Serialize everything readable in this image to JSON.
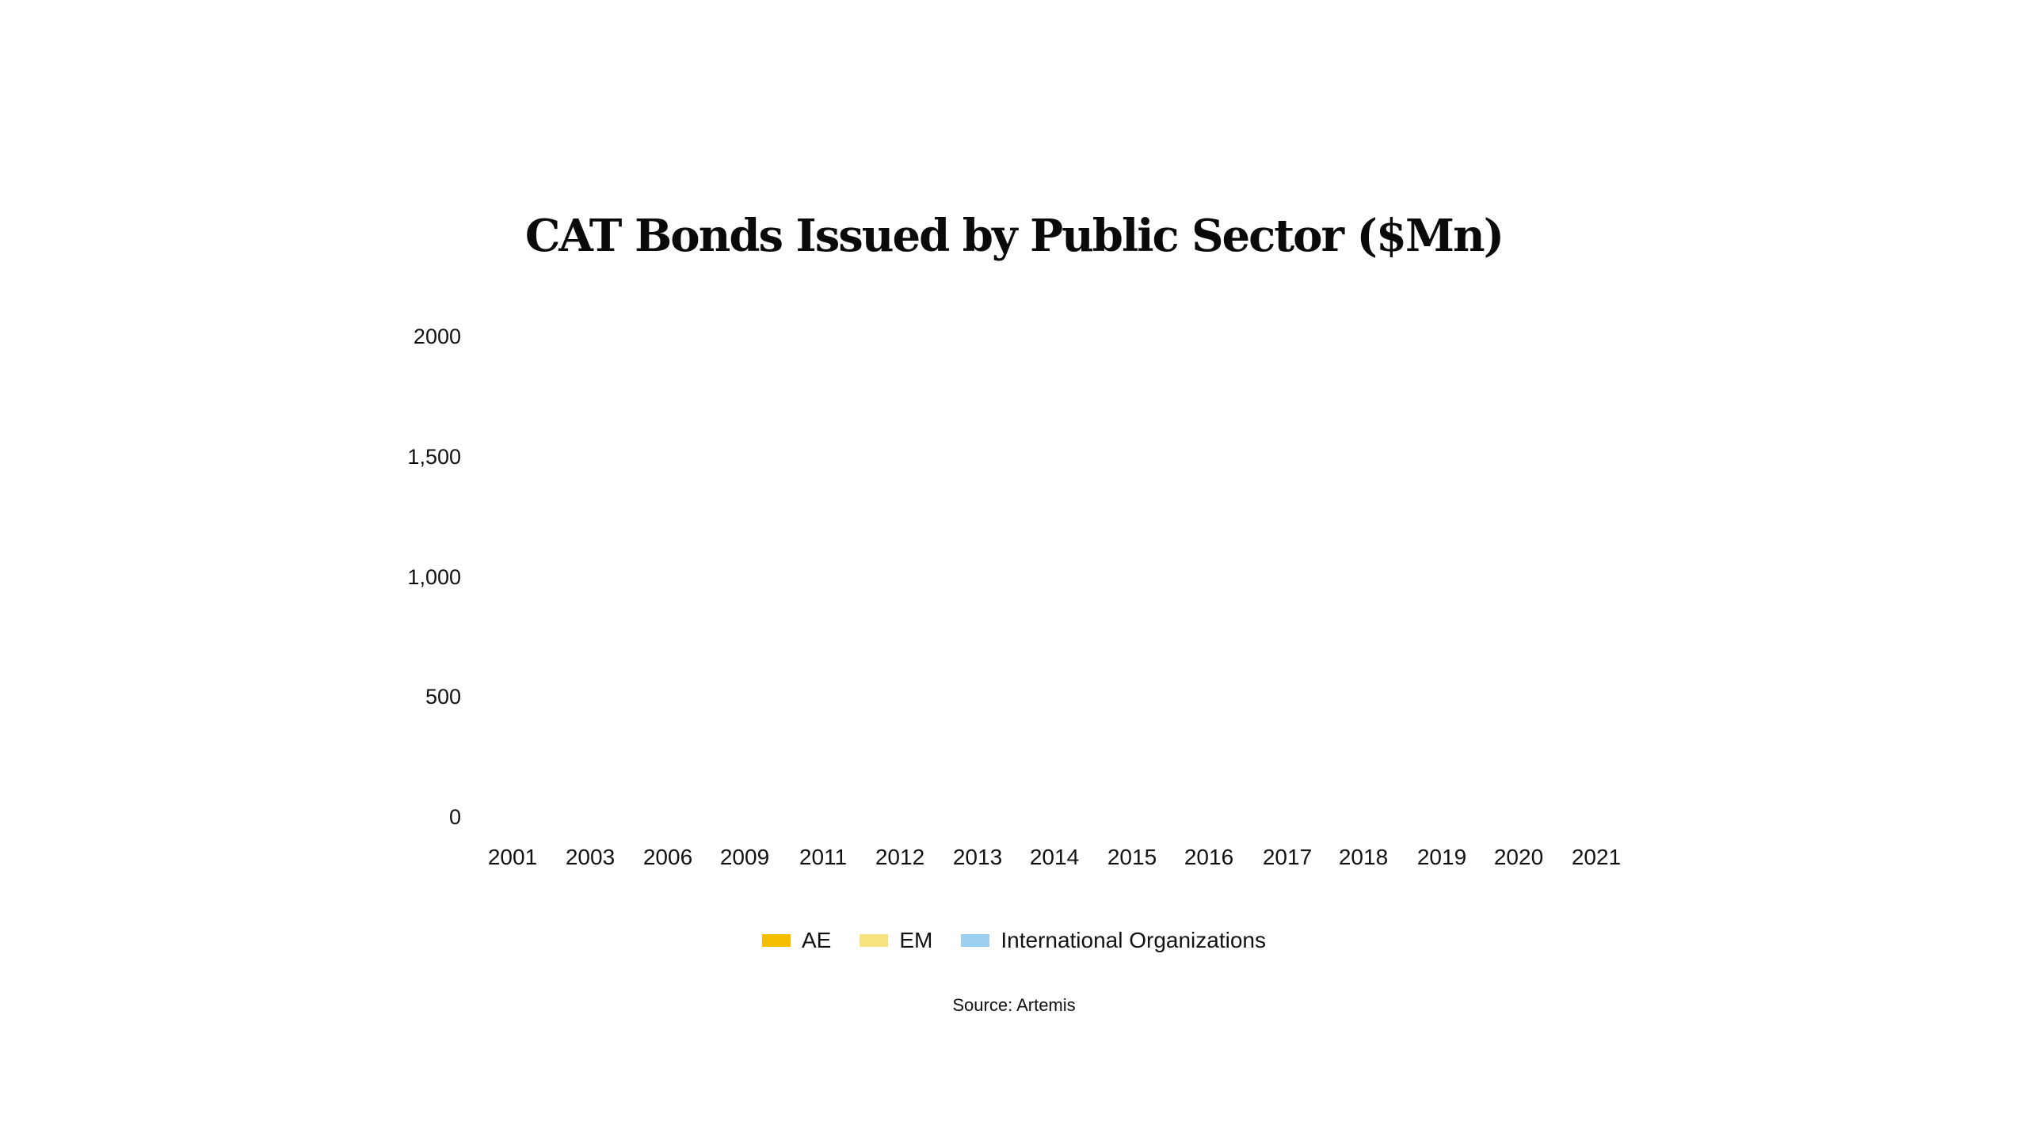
{
  "title": "CAT Bonds Issued by Public Sector ($Mn)",
  "source": "Source: Artemis",
  "y_axis": {
    "ticks": [
      {
        "label": "2000",
        "value": 2000
      },
      {
        "label": "1,500",
        "value": 1500
      },
      {
        "label": "1,000",
        "value": 1000
      },
      {
        "label": "500",
        "value": 500
      },
      {
        "label": "0",
        "value": 0
      }
    ]
  },
  "x_axis": {
    "labels": [
      "2001",
      "2003",
      "2006",
      "2009",
      "2011",
      "2012",
      "2013",
      "2014",
      "2015",
      "2016",
      "2017",
      "2018",
      "2019",
      "2020",
      "2021"
    ]
  },
  "legend": [
    {
      "label": "AE",
      "color": "#F5BE00"
    },
    {
      "label": "EM",
      "color": "#F7E27F"
    },
    {
      "label": "International Organizations",
      "color": "#9CCFF0"
    }
  ],
  "chart_data": {
    "type": "bar",
    "stacked": true,
    "title": "CAT Bonds Issued by Public Sector ($Mn)",
    "xlabel": "",
    "ylabel": "",
    "ylim": [
      0,
      2000
    ],
    "yticks": [
      0,
      500,
      1000,
      1500,
      2000
    ],
    "ytick_labels": [
      "0",
      "500",
      "1,000",
      "1,500",
      "2000"
    ],
    "grid": false,
    "legend_position": "bottom",
    "categories": [
      "2001",
      "2003",
      "2006",
      "2009",
      "2011",
      "2012",
      "2013",
      "2014",
      "2015",
      "2016",
      "2017",
      "2018",
      "2019",
      "2020",
      "2021"
    ],
    "series": [
      {
        "name": "AE",
        "color": "#F5BE00",
        "values": [
          null,
          null,
          null,
          null,
          null,
          null,
          null,
          null,
          null,
          null,
          null,
          null,
          null,
          null,
          null
        ]
      },
      {
        "name": "EM",
        "color": "#F7E27F",
        "values": [
          null,
          null,
          null,
          null,
          null,
          null,
          null,
          null,
          null,
          null,
          null,
          null,
          null,
          null,
          null
        ]
      },
      {
        "name": "International Organizations",
        "color": "#9CCFF0",
        "values": [
          null,
          null,
          null,
          null,
          null,
          null,
          null,
          null,
          null,
          null,
          null,
          null,
          null,
          null,
          null
        ]
      }
    ],
    "annotations": [
      "Source: Artemis"
    ]
  }
}
